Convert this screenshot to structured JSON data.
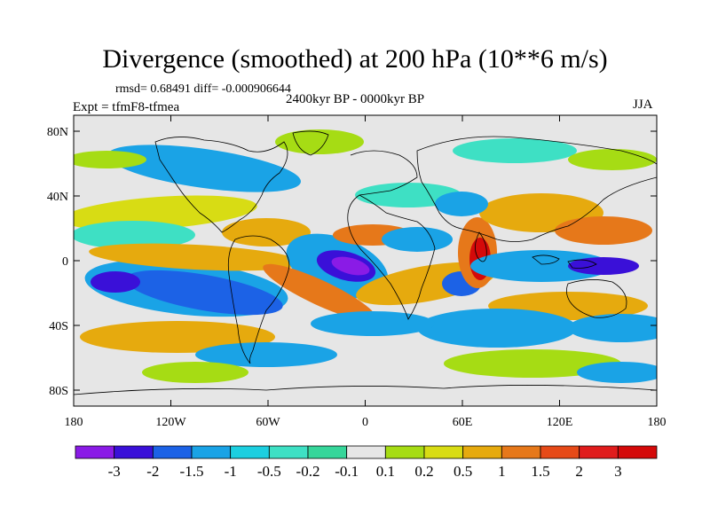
{
  "title": "Divergence (smoothed) at 200 hPa (10**6 m/s)",
  "stats": "rmsd= 0.68491 diff= -0.000906644",
  "period": "2400kyr BP - 0000kyr BP",
  "experiment": "Expt = tfmF8-tfmea",
  "season": "JJA",
  "axes": {
    "lon_labels": [
      "180",
      "120W",
      "60W",
      "0",
      "60E",
      "120E",
      "180"
    ],
    "lat_labels": [
      "80N",
      "40N",
      "0",
      "40S",
      "80S"
    ]
  },
  "colorbar": {
    "labels": [
      "-3",
      "-2",
      "-1.5",
      "-1",
      "-0.5",
      "-0.2",
      "-0.1",
      "0.1",
      "0.2",
      "0.5",
      "1",
      "1.5",
      "2",
      "3"
    ],
    "colors": [
      "#8a1be6",
      "#3a10d8",
      "#1c62e6",
      "#1aa3e6",
      "#1ccfe0",
      "#3ee0c4",
      "#36d69a",
      "#e6e6e6",
      "#a6dc14",
      "#d8dc14",
      "#e6aa0e",
      "#e6781a",
      "#e64a18",
      "#e01c1c",
      "#d40a0a"
    ]
  },
  "map_background": "#e6e6e6",
  "anomaly_regions": [
    {
      "name": "atlantic-convergence-center",
      "color": "#3a10d8",
      "value": "-3"
    },
    {
      "name": "indian-ocean-divergence-center",
      "color": "#e01c1c",
      "value": "3"
    },
    {
      "name": "east-pacific-convergence",
      "color": "#1c62e6",
      "value": "-2"
    },
    {
      "name": "west-pacific-convergence",
      "color": "#3a10d8",
      "value": "-2"
    }
  ]
}
